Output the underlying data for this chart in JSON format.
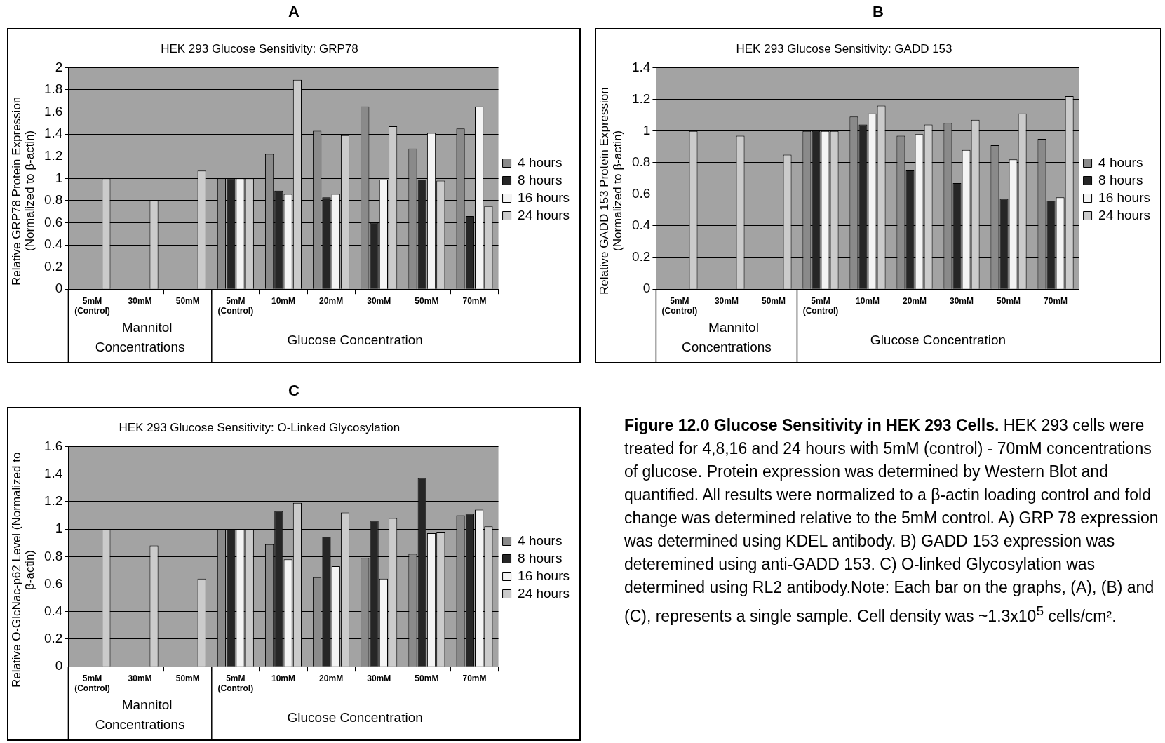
{
  "chart_data": [
    {
      "type": "bar",
      "title": "A",
      "subtitle": "HEK 293 Glucose Sensitivity: GRP78",
      "ylabel": "Relative GRP78 Protein Expression (Normalized to β-actin)",
      "categories": [
        "5mM (Control)",
        "30mM",
        "50mM",
        "5mM (Control)",
        "10mM",
        "20mM",
        "30mM",
        "50mM",
        "70mM"
      ],
      "annotations": [
        "Mannitol Concentrations",
        "Glucose Concentration"
      ],
      "ylim": [
        0,
        2
      ],
      "yticks": [
        0,
        0.2,
        0.4,
        0.6,
        0.8,
        1,
        1.2,
        1.4,
        1.6,
        1.8,
        2
      ],
      "grid": "y",
      "legend": "right",
      "series": [
        {
          "name": "4 hours",
          "color": "#8a8a8a",
          "values": [
            null,
            null,
            null,
            1,
            1.22,
            1.43,
            1.65,
            1.27,
            1.45
          ]
        },
        {
          "name": "8 hours",
          "color": "#262626",
          "values": [
            null,
            null,
            null,
            1,
            0.89,
            0.83,
            0.6,
            0.99,
            0.66
          ]
        },
        {
          "name": "16 hours",
          "color": "#f4f4f4",
          "values": [
            null,
            null,
            null,
            1,
            0.86,
            0.86,
            0.99,
            1.41,
            1.65
          ]
        },
        {
          "name": "24 hours",
          "color": "#cbcbcb",
          "values": [
            1,
            0.8,
            1.07,
            1,
            1.89,
            1.39,
            1.47,
            0.98,
            0.75
          ]
        }
      ]
    },
    {
      "type": "bar",
      "title": "B",
      "subtitle": "HEK 293 Glucose Sensitivity: GADD 153",
      "ylabel": "Relative GADD 153 Protein Expression (Normalized to β-actin)",
      "categories": [
        "5mM (Control)",
        "30mM",
        "50mM",
        "5mM (Control)",
        "10mM",
        "20mM",
        "30mM",
        "50mM",
        "70mM"
      ],
      "annotations": [
        "Mannitol Concentrations",
        "Glucose Concentration"
      ],
      "ylim": [
        0,
        1.4
      ],
      "yticks": [
        0,
        0.2,
        0.4,
        0.6,
        0.8,
        1,
        1.2,
        1.4
      ],
      "grid": "y",
      "legend": "right",
      "series": [
        {
          "name": "4 hours",
          "color": "#8a8a8a",
          "values": [
            null,
            null,
            null,
            1,
            1.09,
            0.97,
            1.05,
            0.91,
            0.95
          ]
        },
        {
          "name": "8 hours",
          "color": "#262626",
          "values": [
            null,
            null,
            null,
            1,
            1.04,
            0.75,
            0.67,
            0.57,
            0.56
          ]
        },
        {
          "name": "16 hours",
          "color": "#f4f4f4",
          "values": [
            null,
            null,
            null,
            1,
            1.11,
            0.98,
            0.88,
            0.82,
            0.58
          ]
        },
        {
          "name": "24 hours",
          "color": "#cbcbcb",
          "values": [
            1,
            0.97,
            0.85,
            1,
            1.16,
            1.04,
            1.07,
            1.11,
            1.22
          ]
        }
      ]
    },
    {
      "type": "bar",
      "title": "C",
      "subtitle": "HEK 293 Glucose Sensitivity: O-Linked Glycosylation",
      "ylabel": "Relative O-GlcNac-p62 Level (Normalized to β-actin)",
      "categories": [
        "5mM (Control)",
        "30mM",
        "50mM",
        "5mM (Control)",
        "10mM",
        "20mM",
        "30mM",
        "50mM",
        "70mM"
      ],
      "annotations": [
        "Mannitol Concentrations",
        "Glucose Concentration"
      ],
      "ylim": [
        0,
        1.6
      ],
      "yticks": [
        0,
        0.2,
        0.4,
        0.6,
        0.8,
        1,
        1.2,
        1.4,
        1.6
      ],
      "grid": "y",
      "legend": "right",
      "series": [
        {
          "name": "4 hours",
          "color": "#8a8a8a",
          "values": [
            null,
            null,
            null,
            1,
            0.89,
            0.65,
            0.79,
            0.82,
            1.1
          ]
        },
        {
          "name": "8 hours",
          "color": "#262626",
          "values": [
            null,
            null,
            null,
            1,
            1.13,
            0.94,
            1.06,
            1.37,
            1.11
          ]
        },
        {
          "name": "16 hours",
          "color": "#f4f4f4",
          "values": [
            null,
            null,
            null,
            1,
            0.78,
            0.73,
            0.64,
            0.97,
            1.14
          ]
        },
        {
          "name": "24 hours",
          "color": "#cbcbcb",
          "values": [
            1,
            0.88,
            0.64,
            1,
            1.19,
            1.12,
            1.08,
            0.98,
            1.02
          ]
        }
      ]
    },
    {
      "type": "other",
      "title": "Figure 12.0 Glucose Sensitivity in HEK 293 Cells.",
      "annotations": [
        "HEK 293 cells were treated for 4,8,16 and 24 hours with 5mM (control) - 70mM concentrations of glucose.  Protein expression was determined by Western Blot and quantified.  All results were normalized to a β-actin loading control and fold change was determined relative to the 5mM control. A) GRP 78 expression was determined using KDEL antibody. B) GADD 153 expression was deteremined using anti-GADD 153. C) O-linked Glycosylation was determined using RL2 antibody.Note: Each bar on the graphs, (A), (B) and (C), represents a single sample. Cell density was ~1.3x10$^{5}$ cells/cm²."
      ]
    }
  ]
}
